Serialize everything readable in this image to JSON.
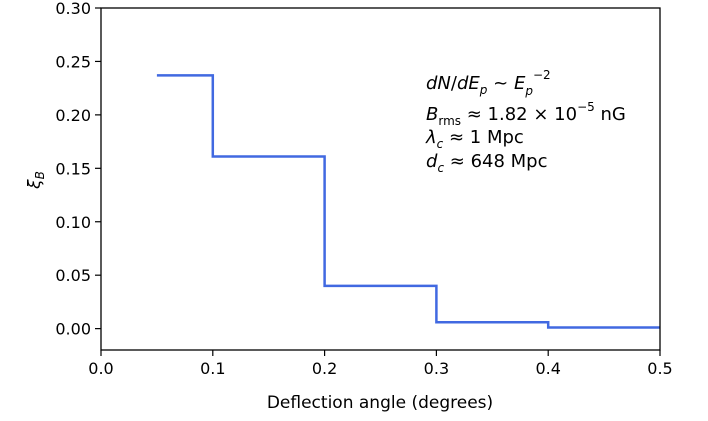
{
  "chart_data": {
    "type": "line",
    "step": true,
    "title": "",
    "xlabel": "Deflection angle (degrees)",
    "ylabel": "ξ_B",
    "xlim": [
      0.0,
      0.5
    ],
    "ylim": [
      -0.02,
      0.3
    ],
    "xticks": [
      "0.0",
      "0.1",
      "0.2",
      "0.3",
      "0.4",
      "0.5"
    ],
    "yticks": [
      "0.00",
      "0.05",
      "0.10",
      "0.15",
      "0.20",
      "0.25",
      "0.30"
    ],
    "grid": false,
    "series": [
      {
        "color": "#4169e1",
        "bins": [
          {
            "x0": 0.05,
            "x1": 0.1,
            "y": 0.237
          },
          {
            "x0": 0.1,
            "x1": 0.2,
            "y": 0.161
          },
          {
            "x0": 0.2,
            "x1": 0.3,
            "y": 0.04
          },
          {
            "x0": 0.3,
            "x1": 0.4,
            "y": 0.006
          },
          {
            "x0": 0.4,
            "x1": 0.5,
            "y": 0.001
          }
        ]
      }
    ],
    "annotations": [
      "dN/dE_p ~ E_p^-2",
      "B_rms ≈ 1.82 × 10^-5 nG",
      "λ_c ≈ 1 Mpc",
      "d_c ≈ 648 Mpc"
    ]
  }
}
